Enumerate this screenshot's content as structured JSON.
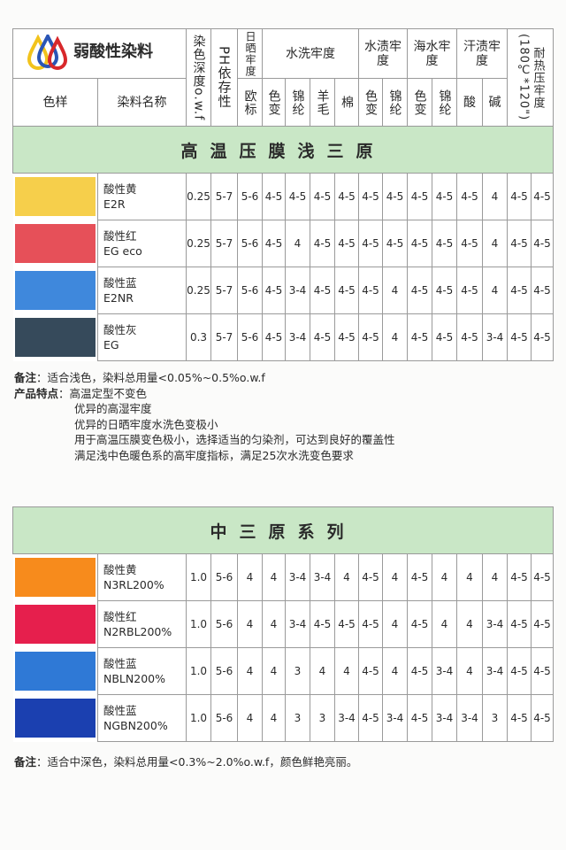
{
  "header": {
    "title": "弱酸性染料",
    "depth": "染色深度o.w.f",
    "ph": "PH依存性",
    "light": "日晒牢度",
    "wash": "水洗牢度",
    "water": "水渍牢度",
    "sea": "海水牢度",
    "sweat": "汗渍牢度",
    "heat": "耐热压牢度(180℃*120\")",
    "swatch": "色样",
    "name": "染料名称",
    "eu": "欧标",
    "sub": [
      "色变",
      "锦纶",
      "羊毛",
      "棉",
      "色变",
      "锦纶",
      "色变",
      "锦纶",
      "酸",
      "碱"
    ]
  },
  "section1": {
    "title": "高温压膜浅三原",
    "rows": [
      {
        "color": "#f6cf4b",
        "name": "酸性黄",
        "code": "E2R",
        "values": [
          "0.25",
          "5-7",
          "5-6",
          "4-5",
          "4-5",
          "4-5",
          "4-5",
          "4-5",
          "4-5",
          "4-5",
          "4-5",
          "4-5",
          "4",
          "4-5",
          "4-5"
        ]
      },
      {
        "color": "#e65059",
        "name": "酸性红",
        "code": "EG eco",
        "values": [
          "0.25",
          "5-7",
          "5-6",
          "4-5",
          "4",
          "4-5",
          "4-5",
          "4-5",
          "4-5",
          "4-5",
          "4-5",
          "4-5",
          "4",
          "4-5",
          "4-5"
        ]
      },
      {
        "color": "#3f88dc",
        "name": "酸性蓝",
        "code": "E2NR",
        "values": [
          "0.25",
          "5-7",
          "5-6",
          "4-5",
          "3-4",
          "4-5",
          "4-5",
          "4-5",
          "4",
          "4-5",
          "4-5",
          "4-5",
          "4",
          "4-5",
          "4-5"
        ]
      },
      {
        "color": "#364a5b",
        "name": "酸性灰",
        "code": "EG",
        "values": [
          "0.3",
          "5-7",
          "5-6",
          "4-5",
          "3-4",
          "4-5",
          "4-5",
          "4-5",
          "4",
          "4-5",
          "4-5",
          "4-5",
          "3-4",
          "4-5",
          "4-5"
        ]
      }
    ],
    "note_label": "备注",
    "note": "：适合浅色，染料总用量<0.05%~0.5%o.w.f",
    "features_label": "产品特点",
    "features": [
      "：高温定型不变色",
      "优异的高湿牢度",
      "优异的日晒牢度水洗色变极小",
      "用于高温压膜变色极小，选择适当的匀染剂，可达到良好的覆盖性",
      "满足浅中色暖色系的高牢度指标，满足25次水洗变色要求"
    ]
  },
  "section2": {
    "title": "中三原系列",
    "rows": [
      {
        "color": "#f78b1c",
        "name": "酸性黄",
        "code": "N3RL200%",
        "values": [
          "1.0",
          "5-6",
          "4",
          "4",
          "3-4",
          "3-4",
          "4",
          "4-5",
          "4",
          "4-5",
          "4",
          "4",
          "4",
          "4-5",
          "4-5"
        ]
      },
      {
        "color": "#e61f4d",
        "name": "酸性红",
        "code": "N2RBL200%",
        "values": [
          "1.0",
          "5-6",
          "4",
          "4",
          "3-4",
          "4-5",
          "4-5",
          "4-5",
          "4",
          "4-5",
          "4",
          "4",
          "3-4",
          "4-5",
          "4-5"
        ]
      },
      {
        "color": "#2f79d6",
        "name": "酸性蓝",
        "code": "NBLN200%",
        "values": [
          "1.0",
          "5-6",
          "4",
          "4",
          "3",
          "4",
          "4",
          "4-5",
          "4",
          "4-5",
          "3-4",
          "4",
          "3-4",
          "4-5",
          "4-5"
        ]
      },
      {
        "color": "#1b40b0",
        "name": "酸性蓝",
        "code": "NGBN200%",
        "values": [
          "1.0",
          "5-6",
          "4",
          "4",
          "3",
          "3",
          "3-4",
          "4-5",
          "3-4",
          "4-5",
          "3-4",
          "3-4",
          "3",
          "4-5",
          "4-5"
        ]
      }
    ],
    "note_label": "备注",
    "note": "：适合中深色，染料总用量<0.3%~2.0%o.w.f，颜色鲜艳亮丽。"
  }
}
